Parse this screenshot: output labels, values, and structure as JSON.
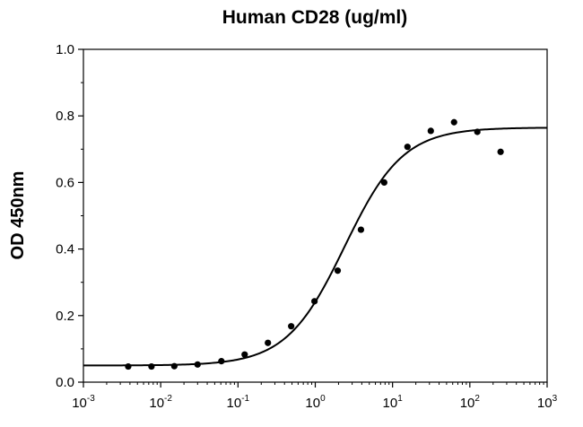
{
  "chart_data": {
    "type": "scatter",
    "title": "Human CD28 (ug/ml)",
    "xlabel": "",
    "ylabel": "OD 450nm",
    "xscale": "log",
    "xlim": [
      0.001,
      1000
    ],
    "ylim": [
      0.0,
      1.0
    ],
    "grid": false,
    "legend": "none",
    "x_ticks": [
      {
        "base": "10",
        "exp": "-3"
      },
      {
        "base": "10",
        "exp": "-2"
      },
      {
        "base": "10",
        "exp": "-1"
      },
      {
        "base": "10",
        "exp": "0"
      },
      {
        "base": "10",
        "exp": "1"
      },
      {
        "base": "10",
        "exp": "2"
      },
      {
        "base": "10",
        "exp": "3"
      }
    ],
    "y_ticks": [
      "0.0",
      "0.2",
      "0.4",
      "0.6",
      "0.8",
      "1.0"
    ],
    "series": [
      {
        "kind": "points",
        "x": [
          0.0038,
          0.0076,
          0.015,
          0.03,
          0.061,
          0.122,
          0.244,
          0.488,
          0.977,
          1.95,
          3.9,
          7.8,
          15.6,
          31.25,
          62.5,
          125,
          250
        ],
        "y": [
          0.047,
          0.047,
          0.048,
          0.053,
          0.063,
          0.083,
          0.118,
          0.168,
          0.243,
          0.335,
          0.458,
          0.6,
          0.707,
          0.755,
          0.781,
          0.752,
          0.692
        ]
      },
      {
        "kind": "fit-curve",
        "model": "4PL",
        "bottom": 0.05,
        "top": 0.765,
        "ec50": 2.4,
        "hill": 1.15
      }
    ],
    "colors": {
      "points": "#000000",
      "curve": "#000000",
      "axes": "#000000"
    }
  }
}
